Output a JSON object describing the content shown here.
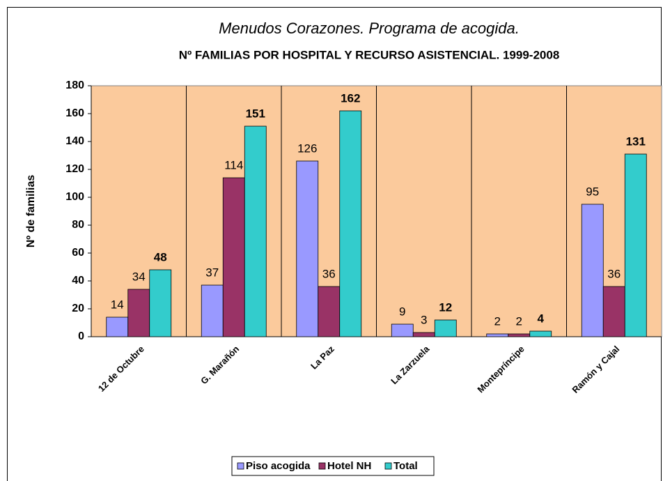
{
  "chart_data": {
    "type": "bar",
    "title": "Menudos Corazones. Programa de acogida.",
    "subtitle": "Nº FAMILIAS POR HOSPITAL Y  RECURSO ASISTENCIAL. 1999-2008",
    "y_label": "Nº de familias",
    "categories": [
      "12 de Octubre",
      "G. Marañón",
      "La Paz",
      "La Zarzuela",
      "Montepríncipe",
      "Ramón y Cajal"
    ],
    "series": [
      {
        "name": "Piso acogida",
        "color": "#9999ff",
        "values": [
          14,
          37,
          126,
          9,
          2,
          95
        ]
      },
      {
        "name": "Hotel NH",
        "color": "#993366",
        "values": [
          34,
          114,
          36,
          3,
          2,
          36
        ]
      },
      {
        "name": "Total",
        "color": "#33cccc",
        "values": [
          48,
          151,
          162,
          12,
          4,
          131
        ]
      }
    ],
    "ylim": [
      0,
      180
    ],
    "yticks": [
      0,
      20,
      40,
      60,
      80,
      100,
      120,
      140,
      160,
      180
    ],
    "legend": "bottom"
  }
}
